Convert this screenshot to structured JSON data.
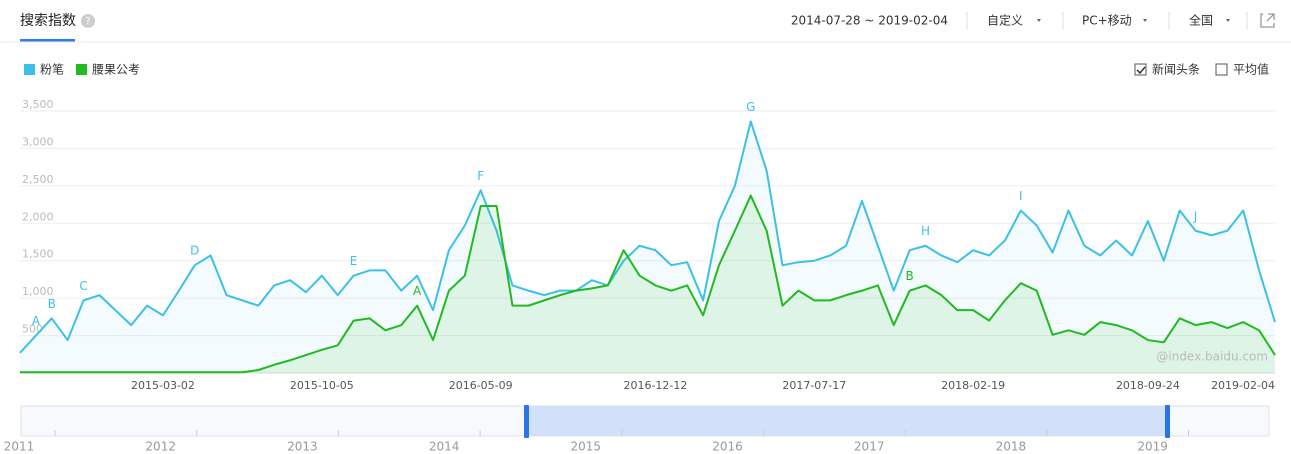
{
  "header": {
    "title": "搜索指数",
    "help": "?",
    "date_range": "2014-07-28 ~ 2019-02-04",
    "mode": "自定义",
    "device": "PC+移动",
    "region": "全国"
  },
  "options": [
    {
      "label": "新闻头条",
      "checked": true
    },
    {
      "label": "平均值",
      "checked": false
    }
  ],
  "watermark": "@index.baidu.com",
  "navigator": {
    "years": [
      "2011",
      "2012",
      "2013",
      "2014",
      "2015",
      "2016",
      "2017",
      "2018",
      "2019"
    ]
  },
  "chart_data": {
    "type": "line",
    "area": true,
    "categories": [
      null,
      null,
      null,
      null,
      null,
      null,
      null,
      null,
      null,
      "2015-03-02",
      null,
      null,
      null,
      null,
      null,
      null,
      null,
      null,
      null,
      "2015-10-05",
      null,
      null,
      null,
      null,
      null,
      null,
      null,
      null,
      null,
      "2016-05-09",
      null,
      null,
      null,
      null,
      null,
      null,
      null,
      null,
      null,
      null,
      "2016-12-12",
      null,
      null,
      null,
      null,
      null,
      null,
      null,
      null,
      null,
      "2017-07-17",
      null,
      null,
      null,
      null,
      null,
      null,
      null,
      null,
      null,
      "2018-02-19",
      null,
      null,
      null,
      null,
      null,
      null,
      null,
      null,
      null,
      null,
      "2018-09-24",
      null,
      null,
      null,
      null,
      null,
      null,
      null,
      "2019-02-04"
    ],
    "series": [
      {
        "name": "粉笔",
        "color": "#3cc0e8",
        "values": [
          270,
          500,
          730,
          440,
          970,
          1040,
          840,
          640,
          900,
          770,
          1100,
          1440,
          1570,
          1040,
          970,
          900,
          1170,
          1240,
          1080,
          1300,
          1040,
          1300,
          1370,
          1370,
          1100,
          1300,
          840,
          1640,
          1970,
          2440,
          1900,
          1170,
          1100,
          1040,
          1100,
          1100,
          1240,
          1170,
          1500,
          1700,
          1640,
          1440,
          1480,
          970,
          2030,
          2500,
          3360,
          2700,
          1440,
          1480,
          1500,
          1570,
          1700,
          2300,
          1700,
          1100,
          1640,
          1700,
          1570,
          1480,
          1640,
          1570,
          1770,
          2170,
          1970,
          1610,
          2170,
          1700,
          1570,
          1770,
          1570,
          2030,
          1500,
          2170,
          1900,
          1840,
          1900,
          2170,
          1370,
          680
        ]
      },
      {
        "name": "腰果公考",
        "color": "#22b922",
        "values": [
          10,
          10,
          10,
          10,
          10,
          10,
          10,
          10,
          10,
          10,
          10,
          10,
          10,
          10,
          10,
          40,
          110,
          170,
          240,
          310,
          370,
          700,
          730,
          570,
          640,
          900,
          440,
          1100,
          1300,
          2230,
          2230,
          900,
          900,
          970,
          1040,
          1100,
          1130,
          1170,
          1640,
          1300,
          1170,
          1100,
          1170,
          770,
          1440,
          1900,
          2370,
          1900,
          900,
          1100,
          970,
          970,
          1040,
          1100,
          1170,
          640,
          1100,
          1170,
          1040,
          840,
          840,
          700,
          970,
          1200,
          1100,
          510,
          570,
          510,
          680,
          640,
          570,
          440,
          410,
          730,
          640,
          680,
          600,
          680,
          570,
          240
        ]
      }
    ],
    "annotations": [
      {
        "text": "A",
        "series": 0,
        "index": 1
      },
      {
        "text": "B",
        "series": 0,
        "index": 2
      },
      {
        "text": "C",
        "series": 0,
        "index": 4
      },
      {
        "text": "D",
        "series": 0,
        "index": 11
      },
      {
        "text": "E",
        "series": 0,
        "index": 21
      },
      {
        "text": "F",
        "series": 0,
        "index": 29
      },
      {
        "text": "G",
        "series": 0,
        "index": 46
      },
      {
        "text": "H",
        "series": 0,
        "index": 57
      },
      {
        "text": "I",
        "series": 0,
        "index": 63
      },
      {
        "text": "J",
        "series": 0,
        "index": 74
      },
      {
        "text": "A",
        "series": 1,
        "index": 25
      },
      {
        "text": "B",
        "series": 1,
        "index": 56
      }
    ],
    "ylim": [
      0,
      3700
    ],
    "yticks": [
      500,
      {
        "value": 1000,
        "label": "1,000"
      },
      {
        "value": 1500,
        "label": "1,500"
      },
      {
        "value": 2000,
        "label": "2,000"
      },
      {
        "value": 2500,
        "label": "2,500"
      },
      {
        "value": 3000,
        "label": "3,000"
      },
      {
        "value": 3500,
        "label": "3,500"
      }
    ],
    "grid": true,
    "legend": "top-left"
  }
}
